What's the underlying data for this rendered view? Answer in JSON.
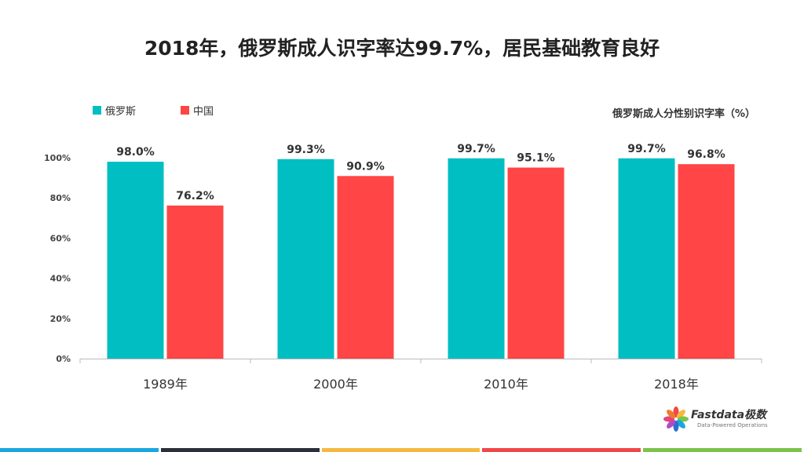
{
  "title": "2018年，俄罗斯成人识字率达99.7%，居民基础教育良好",
  "subtitle": "俄罗斯成人分性别识字率（%）",
  "logo": {
    "name": "Fastdata极数",
    "tagline": "Data-Powered Operations"
  },
  "colors": {
    "russia": "#00BEC2",
    "china": "#FF4545",
    "strip": [
      "#1AA7E0",
      "#2A2F3A",
      "#F5B942",
      "#F04848",
      "#7CC34B"
    ]
  },
  "chart_data": {
    "type": "bar",
    "categories": [
      "1989年",
      "2000年",
      "2010年",
      "2018年"
    ],
    "series": [
      {
        "name": "俄罗斯",
        "values": [
          98.0,
          99.3,
          99.7,
          99.7
        ],
        "labels": [
          "98.0%",
          "99.3%",
          "99.7%",
          "99.7%"
        ]
      },
      {
        "name": "中国",
        "values": [
          76.2,
          90.9,
          95.1,
          96.8
        ],
        "labels": [
          "76.2%",
          "90.9%",
          "95.1%",
          "96.8%"
        ]
      }
    ],
    "ylim": [
      0,
      100
    ],
    "yticks": [
      "0%",
      "20%",
      "40%",
      "60%",
      "80%",
      "100%"
    ],
    "legend_position": "top-left",
    "grid": false
  }
}
